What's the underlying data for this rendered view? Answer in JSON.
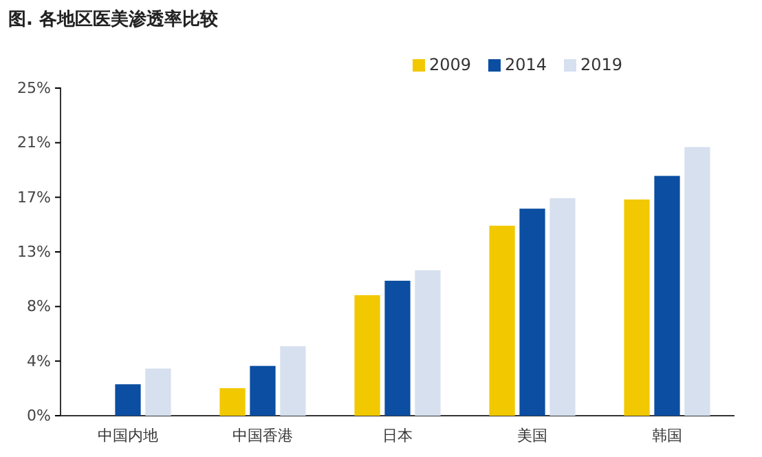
{
  "chart_data": {
    "type": "bar",
    "title": "图. 各地区医美渗透率比较",
    "categories": [
      "中国内地",
      "中国香港",
      "日本",
      "美国",
      "韩国"
    ],
    "series": [
      {
        "name": "2009",
        "color": "#f2c800",
        "values": [
          null,
          2.1,
          9.2,
          14.5,
          16.5
        ]
      },
      {
        "name": "2014",
        "color": "#0b4ea2",
        "values": [
          2.4,
          3.8,
          10.3,
          15.8,
          18.3
        ]
      },
      {
        "name": "2019",
        "color": "#d6e0ef",
        "values": [
          3.6,
          5.3,
          11.1,
          16.6,
          20.5
        ]
      }
    ],
    "ylim": [
      0,
      25
    ],
    "yticks": [
      {
        "value": 0,
        "label": "0%"
      },
      {
        "value": 4.17,
        "label": "4%"
      },
      {
        "value": 8.33,
        "label": "8%"
      },
      {
        "value": 12.5,
        "label": "13%"
      },
      {
        "value": 16.67,
        "label": "17%"
      },
      {
        "value": 20.83,
        "label": "21%"
      },
      {
        "value": 25,
        "label": "25%"
      }
    ],
    "legend": "top",
    "grid": false
  }
}
